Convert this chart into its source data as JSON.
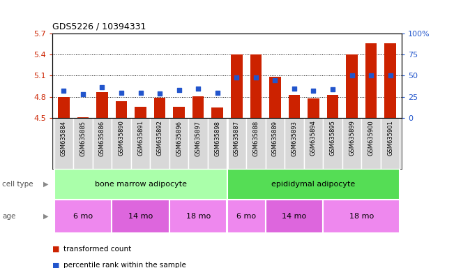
{
  "title": "GDS5226 / 10394331",
  "samples": [
    "GSM635884",
    "GSM635885",
    "GSM635886",
    "GSM635890",
    "GSM635891",
    "GSM635892",
    "GSM635896",
    "GSM635897",
    "GSM635898",
    "GSM635887",
    "GSM635888",
    "GSM635889",
    "GSM635893",
    "GSM635894",
    "GSM635895",
    "GSM635899",
    "GSM635900",
    "GSM635901"
  ],
  "bar_values": [
    4.795,
    4.505,
    4.865,
    4.735,
    4.655,
    4.79,
    4.655,
    4.81,
    4.645,
    5.4,
    5.4,
    5.085,
    4.83,
    4.775,
    4.825,
    5.405,
    5.56,
    5.56
  ],
  "dot_values": [
    32,
    28,
    36,
    30,
    30,
    29,
    33,
    35,
    30,
    48,
    48,
    45,
    35,
    32,
    34,
    50,
    50,
    50
  ],
  "ylim_left": [
    4.5,
    5.7
  ],
  "ylim_right": [
    0,
    100
  ],
  "yticks_left": [
    4.5,
    4.8,
    5.1,
    5.4,
    5.7
  ],
  "yticks_right": [
    0,
    25,
    50,
    75,
    100
  ],
  "ytick_labels_right": [
    "0",
    "25",
    "50",
    "75",
    "100%"
  ],
  "bar_color": "#cc2200",
  "dot_color": "#2255cc",
  "bar_bottom": 4.5,
  "cell_type_groups": [
    {
      "label": "bone marrow adipocyte",
      "start": 0,
      "end": 9,
      "color": "#aaffaa"
    },
    {
      "label": "epididymal adipocyte",
      "start": 9,
      "end": 18,
      "color": "#55dd55"
    }
  ],
  "age_groups": [
    {
      "label": "6 mo",
      "start": 0,
      "end": 3,
      "color": "#ee88ee"
    },
    {
      "label": "14 mo",
      "start": 3,
      "end": 6,
      "color": "#dd66dd"
    },
    {
      "label": "18 mo",
      "start": 6,
      "end": 9,
      "color": "#ee88ee"
    },
    {
      "label": "6 mo",
      "start": 9,
      "end": 11,
      "color": "#ee88ee"
    },
    {
      "label": "14 mo",
      "start": 11,
      "end": 14,
      "color": "#dd66dd"
    },
    {
      "label": "18 mo",
      "start": 14,
      "end": 18,
      "color": "#ee88ee"
    }
  ],
  "cell_type_label": "cell type",
  "age_label": "age",
  "legend_bar_label": "transformed count",
  "legend_dot_label": "percentile rank within the sample",
  "sample_bg_color": "#d8d8d8",
  "plot_bg_color": "#ffffff"
}
